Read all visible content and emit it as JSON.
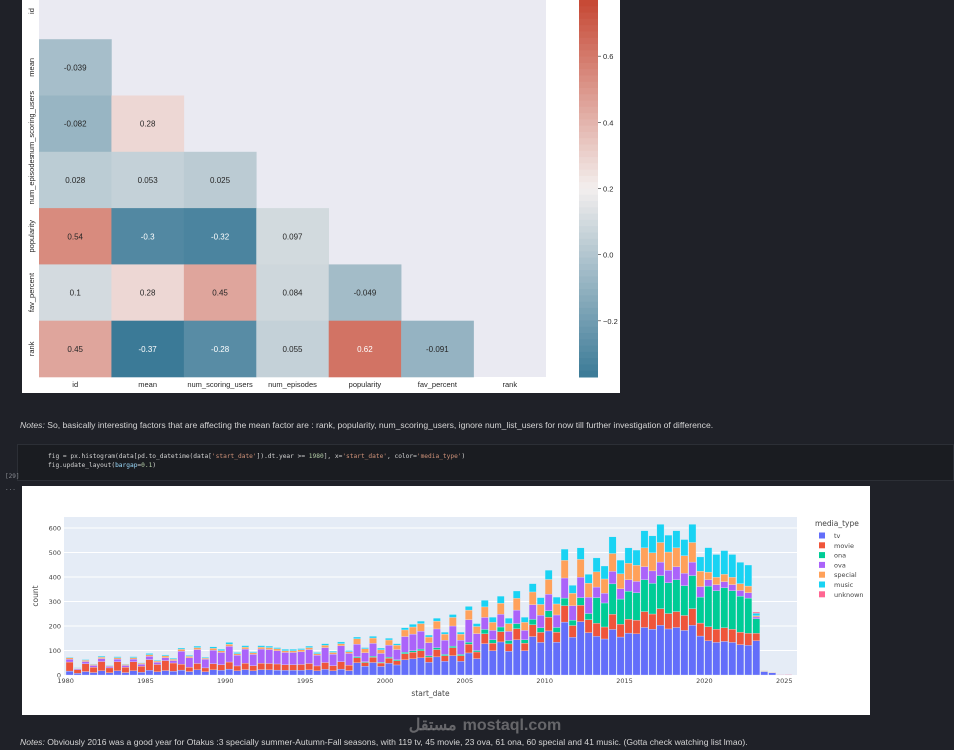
{
  "notes": {
    "note1_label": "Notes:",
    "note1_text": " So, basically interesting factors that are affecting the mean factor are : rank, popularity, num_scoring_users, ignore num_list_users for now till further investigation of difference.",
    "note2_label": "Notes:",
    "note2_text": " Obviously 2016 was a good year for Otakus :3 specially summer-Autumn-Fall seasons, with 119 tv, 45 movie, 23 ova, 61 ona, 60 special and 41 music. (Gotta check watching list lmao)."
  },
  "code_cell": {
    "execution_count": "[29]",
    "output_prompt": "...",
    "lines": [
      [
        [
          "fig = px.histogram(data[pd.to_datetime(data[",
          ""
        ],
        [
          "'start_date'",
          "s"
        ],
        [
          "]).dt.year >= ",
          ""
        ],
        [
          "1980",
          "n"
        ],
        [
          "], x=",
          ""
        ],
        [
          "'start_date'",
          "s"
        ],
        [
          ", color=",
          ""
        ],
        [
          "'media_type'",
          "s"
        ],
        [
          ")",
          ""
        ]
      ],
      [
        [
          "fig.update_layout(",
          ""
        ],
        [
          "bargap",
          "k"
        ],
        [
          "=",
          ""
        ],
        [
          "0.1",
          "n"
        ],
        [
          ")",
          ""
        ]
      ]
    ]
  },
  "watermark": {
    "arabic": "مستقل",
    "latin": "mostaql.com"
  },
  "chart_data": [
    {
      "type": "heatmap",
      "title": "",
      "labels": [
        "id",
        "mean",
        "num_scoring_users",
        "num_episodes",
        "popularity",
        "fav_percent",
        "rank"
      ],
      "mask": "upper-triangle-and-diagonal",
      "values": [
        [],
        [
          -0.039
        ],
        [
          -0.082,
          0.28
        ],
        [
          0.028,
          0.053,
          0.025
        ],
        [
          0.54,
          -0.3,
          -0.32,
          0.097
        ],
        [
          0.1,
          0.28,
          0.45,
          0.084,
          -0.049
        ],
        [
          0.45,
          -0.37,
          -0.28,
          0.055,
          0.62,
          -0.091
        ]
      ],
      "colorbar": {
        "range": [
          -0.37,
          0.77
        ],
        "ticks": [
          "0.6",
          "0.4",
          "0.2",
          "0.0",
          "−0.2"
        ],
        "tick_values": [
          0.6,
          0.4,
          0.2,
          0.0,
          -0.2
        ]
      },
      "colors": {
        "low": "#3b7a97",
        "mid": "#f3efee",
        "high": "#c64733",
        "masked": "#eaeaf2"
      }
    },
    {
      "type": "bar",
      "stacked": true,
      "xlabel": "start_date",
      "ylabel": "count",
      "x_start": 1980,
      "bin_width_years": 0.5,
      "xlim": [
        1979.9,
        2025.8
      ],
      "ylim": [
        0,
        645
      ],
      "xticks": [
        1980,
        1985,
        1990,
        1995,
        2000,
        2005,
        2010,
        2015,
        2020,
        2025
      ],
      "yticks": [
        0,
        100,
        200,
        300,
        400,
        500,
        600
      ],
      "grid": true,
      "legend_title": "media_type",
      "legend_placement": "right",
      "series": [
        {
          "name": "tv",
          "color": "#636efa"
        },
        {
          "name": "movie",
          "color": "#ef553b"
        },
        {
          "name": "ona",
          "color": "#00cc96"
        },
        {
          "name": "ova",
          "color": "#ab63fa"
        },
        {
          "name": "special",
          "color": "#ffa15a"
        },
        {
          "name": "music",
          "color": "#19d3f3"
        },
        {
          "name": "unknown",
          "color": "#ff6692"
        }
      ],
      "counts": [
        [
          16,
          37,
          0,
          11,
          6,
          3,
          0
        ],
        [
          7,
          15,
          0,
          4,
          2,
          2,
          0
        ],
        [
          14,
          32,
          0,
          9,
          5,
          3,
          0
        ],
        [
          10,
          22,
          0,
          7,
          4,
          2,
          0
        ],
        [
          17,
          38,
          0,
          12,
          6,
          4,
          0
        ],
        [
          9,
          20,
          0,
          6,
          3,
          2,
          0
        ],
        [
          17,
          37,
          0,
          11,
          6,
          4,
          0
        ],
        [
          10,
          22,
          0,
          7,
          4,
          2,
          0
        ],
        [
          17,
          37,
          0,
          11,
          6,
          4,
          0
        ],
        [
          11,
          25,
          0,
          8,
          4,
          2,
          0
        ],
        [
          19,
          44,
          0,
          13,
          7,
          5,
          0
        ],
        [
          13,
          30,
          0,
          9,
          5,
          3,
          0
        ],
        [
          18,
          41,
          0,
          12,
          7,
          4,
          0
        ],
        [
          15,
          34,
          0,
          10,
          5,
          4,
          0
        ],
        [
          20,
          24,
          0,
          53,
          8,
          5,
          0
        ],
        [
          14,
          18,
          0,
          38,
          6,
          4,
          0
        ],
        [
          21,
          26,
          0,
          57,
          8,
          6,
          0
        ],
        [
          13,
          16,
          0,
          35,
          5,
          3,
          0
        ],
        [
          21,
          25,
          0,
          55,
          8,
          6,
          0
        ],
        [
          19,
          23,
          0,
          50,
          7,
          6,
          0
        ],
        [
          24,
          29,
          0,
          64,
          9,
          7,
          0
        ],
        [
          17,
          20,
          0,
          44,
          6,
          5,
          0
        ],
        [
          22,
          26,
          0,
          58,
          8,
          6,
          0
        ],
        [
          17,
          21,
          0,
          46,
          7,
          4,
          0
        ],
        [
          22,
          26,
          0,
          58,
          8,
          6,
          0
        ],
        [
          21,
          26,
          0,
          57,
          8,
          6,
          0
        ],
        [
          20,
          25,
          0,
          54,
          8,
          5,
          0
        ],
        [
          19,
          23,
          0,
          50,
          7,
          6,
          0
        ],
        [
          19,
          23,
          0,
          50,
          7,
          6,
          0
        ],
        [
          19,
          24,
          0,
          52,
          8,
          5,
          0
        ],
        [
          21,
          26,
          0,
          57,
          8,
          6,
          0
        ],
        [
          17,
          20,
          0,
          44,
          6,
          5,
          0
        ],
        [
          23,
          28,
          0,
          61,
          9,
          7,
          0
        ],
        [
          17,
          21,
          0,
          47,
          7,
          5,
          0
        ],
        [
          24,
          30,
          0,
          65,
          9,
          7,
          0
        ],
        [
          18,
          22,
          0,
          48,
          7,
          5,
          0
        ],
        [
          50,
          20,
          5,
          51,
          22,
          7,
          0
        ],
        [
          36,
          15,
          3,
          37,
          16,
          5,
          0
        ],
        [
          51,
          21,
          5,
          52,
          22,
          7,
          0
        ],
        [
          35,
          14,
          3,
          36,
          15,
          7,
          0
        ],
        [
          48,
          20,
          5,
          49,
          21,
          7,
          0
        ],
        [
          41,
          17,
          4,
          42,
          18,
          6,
          0
        ],
        [
          62,
          25,
          6,
          64,
          27,
          9,
          0
        ],
        [
          66,
          27,
          6,
          68,
          29,
          11,
          0
        ],
        [
          70,
          29,
          7,
          73,
          31,
          10,
          0
        ],
        [
          52,
          21,
          5,
          54,
          23,
          8,
          0
        ],
        [
          74,
          30,
          7,
          77,
          32,
          12,
          0
        ],
        [
          56,
          23,
          5,
          58,
          25,
          8,
          0
        ],
        [
          79,
          32,
          7,
          82,
          35,
          12,
          0
        ],
        [
          56,
          23,
          5,
          58,
          25,
          8,
          0
        ],
        [
          90,
          36,
          8,
          92,
          39,
          15,
          0
        ],
        [
          67,
          27,
          6,
          69,
          29,
          12,
          0
        ],
        [
          128,
          40,
          18,
          49,
          43,
          27,
          0
        ],
        [
          99,
          31,
          14,
          38,
          33,
          21,
          0
        ],
        [
          135,
          42,
          19,
          52,
          45,
          29,
          0
        ],
        [
          97,
          30,
          14,
          37,
          32,
          22,
          0
        ],
        [
          144,
          45,
          21,
          55,
          48,
          30,
          0
        ],
        [
          99,
          31,
          14,
          38,
          33,
          21,
          0
        ],
        [
          157,
          48,
          22,
          60,
          52,
          34,
          0
        ],
        [
          133,
          41,
          19,
          51,
          44,
          28,
          0
        ],
        [
          180,
          56,
          26,
          68,
          60,
          38,
          0
        ],
        [
          134,
          41,
          19,
          51,
          45,
          28,
          0
        ],
        [
          216,
          67,
          31,
          82,
          72,
          46,
          0
        ],
        [
          154,
          48,
          22,
          59,
          51,
          32,
          0
        ],
        [
          218,
          67,
          31,
          83,
          73,
          47,
          0
        ],
        [
          173,
          53,
          25,
          66,
          58,
          36,
          0
        ],
        [
          158,
          53,
          105,
          43,
          62,
          57,
          0
        ],
        [
          147,
          49,
          98,
          40,
          58,
          53,
          0
        ],
        [
          186,
          62,
          124,
          51,
          73,
          68,
          0
        ],
        [
          155,
          52,
          103,
          42,
          61,
          56,
          0
        ],
        [
          171,
          57,
          114,
          47,
          67,
          63,
          0
        ],
        [
          168,
          56,
          112,
          46,
          66,
          62,
          0
        ],
        [
          194,
          65,
          130,
          53,
          77,
          70,
          0
        ],
        [
          187,
          62,
          125,
          51,
          74,
          69,
          0
        ],
        [
          203,
          68,
          135,
          55,
          80,
          74,
          0
        ],
        [
          188,
          63,
          126,
          51,
          74,
          69,
          0
        ],
        [
          194,
          65,
          130,
          53,
          77,
          70,
          0
        ],
        [
          182,
          61,
          122,
          50,
          72,
          66,
          0
        ],
        [
          203,
          68,
          135,
          55,
          80,
          74,
          0
        ],
        [
          159,
          53,
          106,
          43,
          63,
          58,
          0
        ],
        [
          140,
          57,
          166,
          26,
          31,
          100,
          0
        ],
        [
          133,
          54,
          157,
          25,
          30,
          93,
          0
        ],
        [
          137,
          56,
          163,
          25,
          30,
          97,
          0
        ],
        [
          133,
          54,
          157,
          25,
          30,
          93,
          0
        ],
        [
          124,
          51,
          147,
          23,
          28,
          87,
          0
        ],
        [
          121,
          49,
          144,
          22,
          27,
          86,
          0
        ],
        [
          140,
          30,
          60,
          7,
          5,
          10,
          5
        ],
        [
          14,
          2,
          1,
          0,
          1,
          0,
          0
        ],
        [
          9,
          1,
          0,
          0,
          1,
          0,
          0
        ],
        [
          1,
          0,
          0,
          0,
          0,
          0,
          1
        ],
        [
          0,
          0,
          0,
          0,
          0,
          0,
          2
        ]
      ]
    }
  ]
}
